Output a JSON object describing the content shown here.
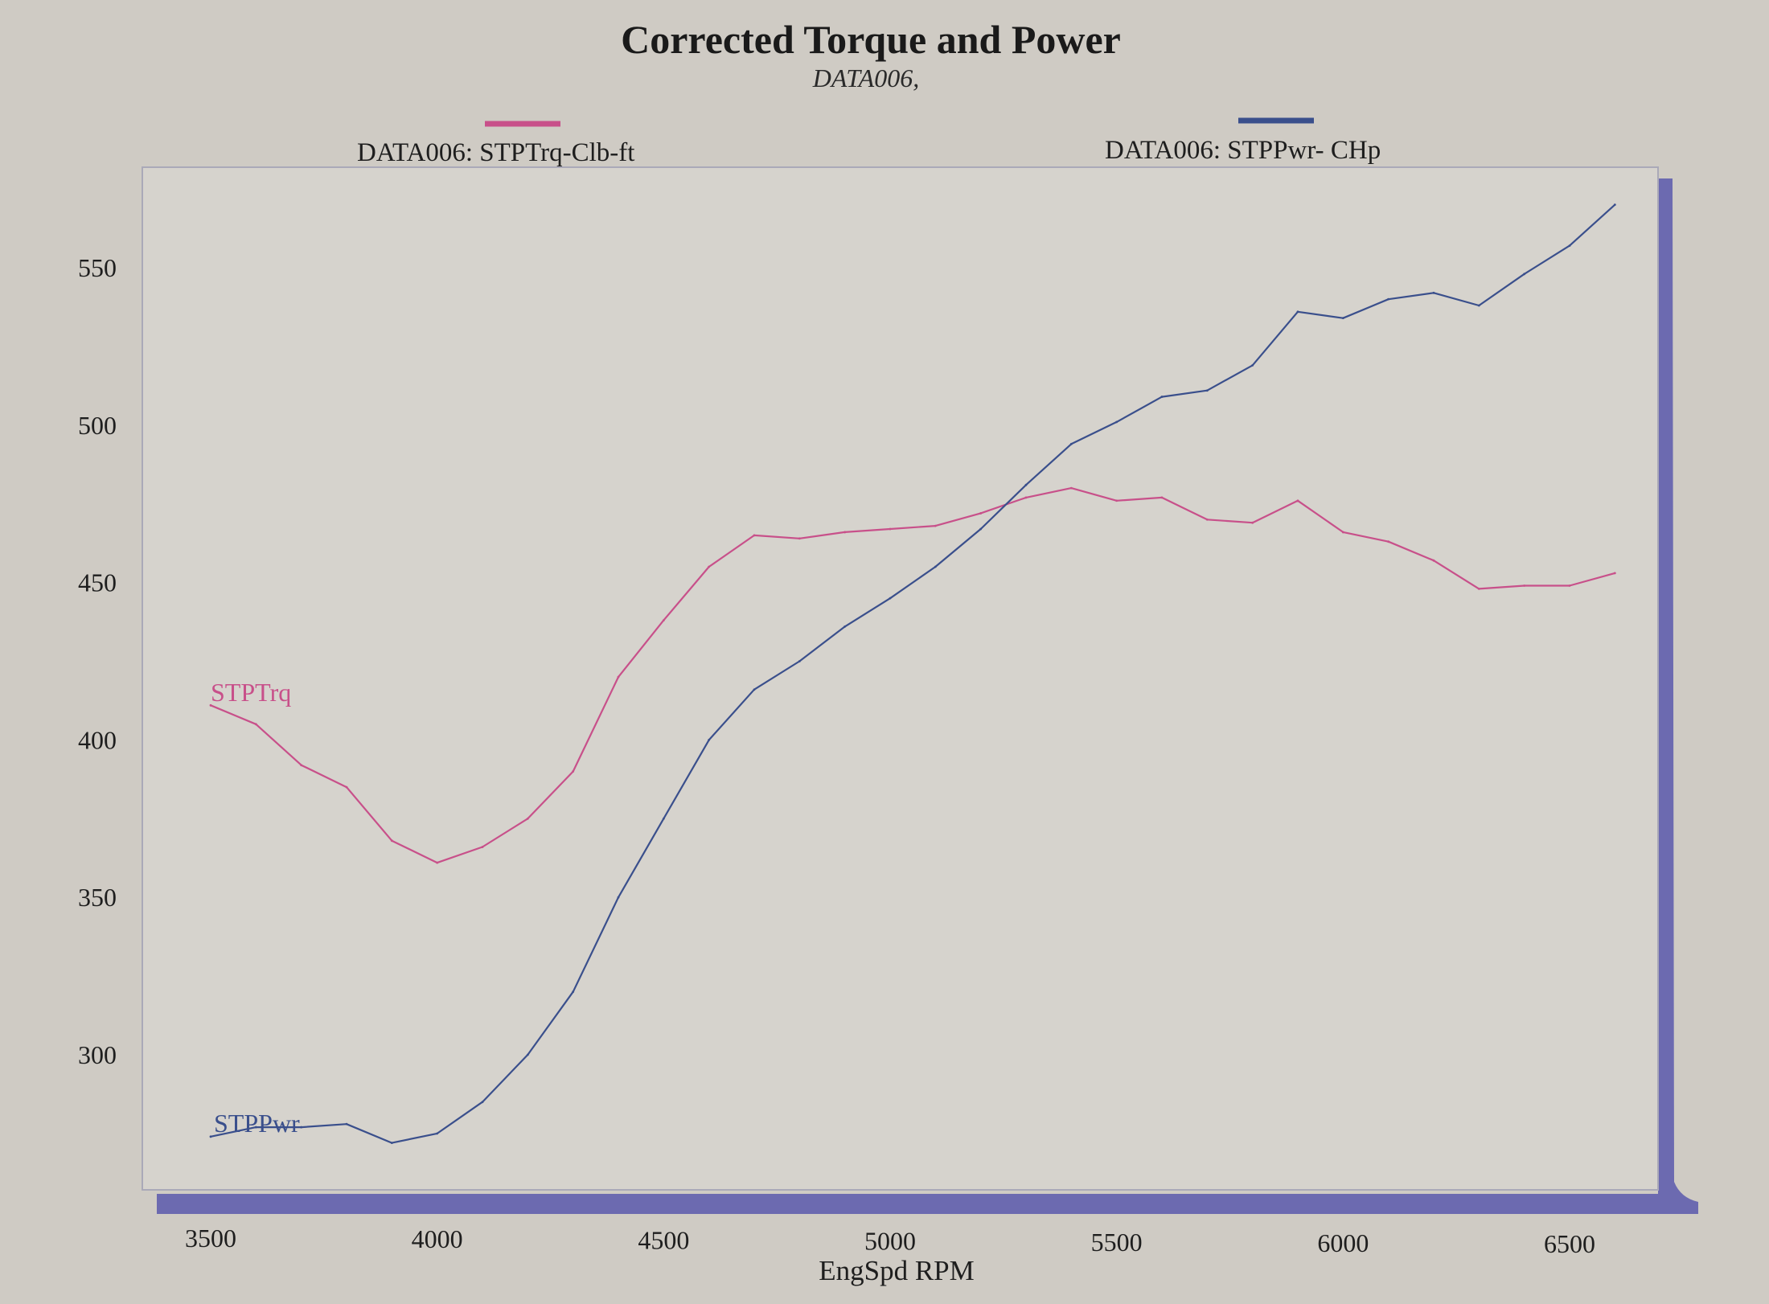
{
  "colors": {
    "page_bg": "#cfcbc4",
    "plot_bg": "#d6d3cd",
    "frame_shadow": "#6c6ab0",
    "torque": "#c8508a",
    "power": "#3a4f8c"
  },
  "chart_data": {
    "type": "line",
    "title": "Corrected Torque and Power",
    "subtitle": "DATA006,",
    "xlabel": "EngSpd  RPM",
    "ylabel": "",
    "xlim": [
      3500,
      6600
    ],
    "ylim": [
      230,
      575
    ],
    "x_ticks": [
      "3500",
      "4000",
      "4500",
      "5000",
      "5500",
      "6000",
      "6500"
    ],
    "y_ticks": [
      "300",
      "350",
      "400",
      "450",
      "500",
      "550"
    ],
    "grid": false,
    "legend_position": "top",
    "series": [
      {
        "name": "DATA006: STPTrq-Clb-ft",
        "label": "STPTrq",
        "color": "#c8508a",
        "x": [
          3500,
          3600,
          3700,
          3800,
          3900,
          4000,
          4100,
          4200,
          4300,
          4400,
          4500,
          4600,
          4700,
          4800,
          4900,
          5000,
          5100,
          5200,
          5300,
          5400,
          5500,
          5600,
          5700,
          5800,
          5900,
          6000,
          6100,
          6200,
          6300,
          6400,
          6500,
          6600
        ],
        "y": [
          411,
          405,
          392,
          385,
          368,
          361,
          366,
          375,
          390,
          420,
          438,
          455,
          465,
          464,
          466,
          467,
          468,
          472,
          477,
          480,
          476,
          477,
          470,
          469,
          476,
          466,
          463,
          457,
          448,
          449,
          449,
          453
        ]
      },
      {
        "name": "DATA006: STPPwr- CHp",
        "label": "STPPwr",
        "color": "#3a4f8c",
        "x": [
          3500,
          3600,
          3700,
          3800,
          3900,
          4000,
          4100,
          4200,
          4300,
          4400,
          4500,
          4600,
          4700,
          4800,
          4900,
          5000,
          5100,
          5200,
          5300,
          5400,
          5500,
          5600,
          5700,
          5800,
          5900,
          6000,
          6100,
          6200,
          6300,
          6400,
          6500,
          6600
        ],
        "y": [
          274,
          277,
          277,
          278,
          272,
          275,
          285,
          300,
          320,
          350,
          375,
          400,
          416,
          425,
          436,
          445,
          455,
          467,
          481,
          494,
          501,
          509,
          511,
          519,
          536,
          534,
          540,
          542,
          538,
          548,
          557,
          570
        ]
      }
    ]
  }
}
